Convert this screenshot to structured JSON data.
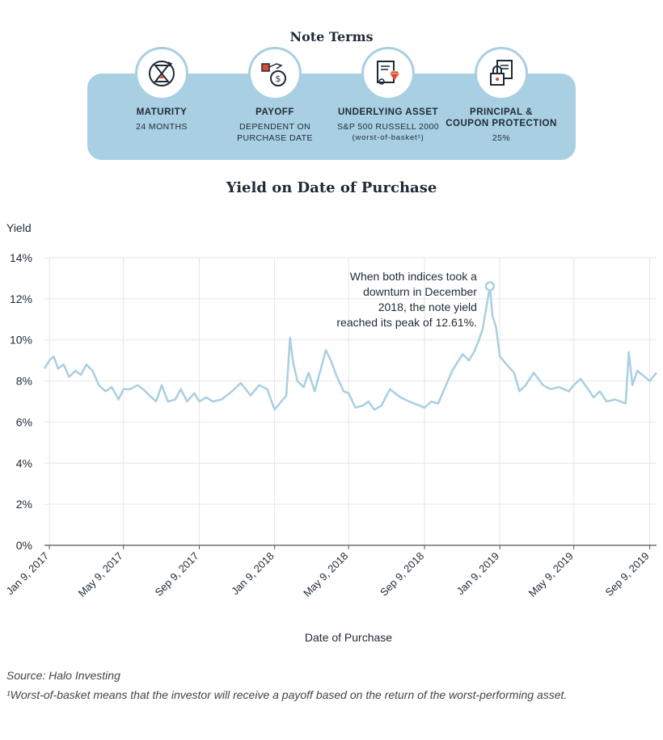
{
  "terms": {
    "title": "Note Terms",
    "items": [
      {
        "label": "MATURITY",
        "value_lines": [
          "24 MONTHS"
        ],
        "icon": "hourglass-icon"
      },
      {
        "label": "PAYOFF",
        "value_lines": [
          "DEPENDENT ON",
          "PURCHASE DATE"
        ],
        "icon": "money-bag-icon"
      },
      {
        "label": "UNDERLYING ASSET",
        "value_lines": [
          "S&P 500 RUSSELL 2000"
        ],
        "note": "(worst-of-basket¹)",
        "icon": "certificate-diamond-icon"
      },
      {
        "label_lines": [
          "PRINCIPAL &",
          "COUPON PROTECTION"
        ],
        "value_lines": [
          "25%"
        ],
        "icon": "document-lock-icon"
      }
    ]
  },
  "colors": {
    "band": "#a9cfe2",
    "line": "#a9cfe2",
    "grid": "#e6e6e6",
    "axis": "#555555",
    "text": "#1e2a36"
  },
  "chart_data": {
    "type": "line",
    "title": "Yield on Date of Purchase",
    "ylabel": "Yield",
    "xlabel": "Date of Purchase",
    "ylim": [
      0,
      14
    ],
    "yticks": [
      0,
      2,
      4,
      6,
      8,
      10,
      12,
      14
    ],
    "ytick_labels": [
      "0%",
      "2%",
      "4%",
      "6%",
      "8%",
      "10%",
      "12%",
      "14%"
    ],
    "xlim": [
      "2017-01-01",
      "2019-09-20"
    ],
    "xticks": [
      "2017-01-09",
      "2017-05-09",
      "2017-09-09",
      "2018-01-09",
      "2018-05-09",
      "2018-09-09",
      "2019-01-09",
      "2019-05-09",
      "2019-09-09"
    ],
    "xtick_labels": [
      "Jan 9, 2017",
      "May 9, 2017",
      "Sep 9, 2017",
      "Jan 9, 2018",
      "May 9, 2018",
      "Sep 9, 2018",
      "Jan 9, 2019",
      "May 9, 2019",
      "Sep 9, 2019"
    ],
    "grid": true,
    "series": [
      {
        "points": [
          [
            "2017-01-01",
            8.6
          ],
          [
            "2017-01-09",
            9.0
          ],
          [
            "2017-01-16",
            9.2
          ],
          [
            "2017-01-23",
            8.6
          ],
          [
            "2017-02-01",
            8.8
          ],
          [
            "2017-02-10",
            8.2
          ],
          [
            "2017-02-20",
            8.5
          ],
          [
            "2017-03-01",
            8.3
          ],
          [
            "2017-03-10",
            8.8
          ],
          [
            "2017-03-20",
            8.5
          ],
          [
            "2017-03-30",
            7.8
          ],
          [
            "2017-04-10",
            7.5
          ],
          [
            "2017-04-20",
            7.7
          ],
          [
            "2017-05-01",
            7.1
          ],
          [
            "2017-05-09",
            7.6
          ],
          [
            "2017-05-20",
            7.6
          ],
          [
            "2017-06-01",
            7.8
          ],
          [
            "2017-06-10",
            7.6
          ],
          [
            "2017-06-20",
            7.3
          ],
          [
            "2017-07-01",
            7.0
          ],
          [
            "2017-07-10",
            7.8
          ],
          [
            "2017-07-20",
            7.0
          ],
          [
            "2017-08-01",
            7.1
          ],
          [
            "2017-08-10",
            7.6
          ],
          [
            "2017-08-20",
            7.0
          ],
          [
            "2017-09-01",
            7.4
          ],
          [
            "2017-09-09",
            7.0
          ],
          [
            "2017-09-20",
            7.2
          ],
          [
            "2017-10-01",
            7.0
          ],
          [
            "2017-10-15",
            7.1
          ],
          [
            "2017-11-01",
            7.5
          ],
          [
            "2017-11-15",
            7.9
          ],
          [
            "2017-12-01",
            7.3
          ],
          [
            "2017-12-15",
            7.8
          ],
          [
            "2017-12-28",
            7.6
          ],
          [
            "2018-01-09",
            6.6
          ],
          [
            "2018-01-20",
            7.0
          ],
          [
            "2018-01-28",
            7.3
          ],
          [
            "2018-02-03",
            10.1
          ],
          [
            "2018-02-08",
            8.9
          ],
          [
            "2018-02-15",
            8.0
          ],
          [
            "2018-02-25",
            7.7
          ],
          [
            "2018-03-05",
            8.4
          ],
          [
            "2018-03-15",
            7.5
          ],
          [
            "2018-03-25",
            8.6
          ],
          [
            "2018-04-02",
            9.5
          ],
          [
            "2018-04-10",
            9.0
          ],
          [
            "2018-04-20",
            8.2
          ],
          [
            "2018-05-01",
            7.5
          ],
          [
            "2018-05-09",
            7.4
          ],
          [
            "2018-05-20",
            6.7
          ],
          [
            "2018-06-01",
            6.8
          ],
          [
            "2018-06-10",
            7.0
          ],
          [
            "2018-06-20",
            6.6
          ],
          [
            "2018-07-01",
            6.8
          ],
          [
            "2018-07-15",
            7.6
          ],
          [
            "2018-08-01",
            7.2
          ],
          [
            "2018-08-15",
            7.0
          ],
          [
            "2018-09-01",
            6.8
          ],
          [
            "2018-09-09",
            6.7
          ],
          [
            "2018-09-20",
            7.0
          ],
          [
            "2018-10-01",
            6.9
          ],
          [
            "2018-10-11",
            7.6
          ],
          [
            "2018-10-24",
            8.5
          ],
          [
            "2018-11-01",
            8.9
          ],
          [
            "2018-11-10",
            9.3
          ],
          [
            "2018-11-20",
            9.0
          ],
          [
            "2018-11-28",
            9.4
          ],
          [
            "2018-12-05",
            9.9
          ],
          [
            "2018-12-12",
            10.5
          ],
          [
            "2018-12-24",
            12.61
          ],
          [
            "2018-12-28",
            11.2
          ],
          [
            "2019-01-03",
            10.6
          ],
          [
            "2019-01-09",
            9.2
          ],
          [
            "2019-01-20",
            8.8
          ],
          [
            "2019-02-01",
            8.4
          ],
          [
            "2019-02-10",
            7.5
          ],
          [
            "2019-02-20",
            7.8
          ],
          [
            "2019-03-05",
            8.4
          ],
          [
            "2019-03-20",
            7.8
          ],
          [
            "2019-04-01",
            7.6
          ],
          [
            "2019-04-15",
            7.7
          ],
          [
            "2019-05-01",
            7.5
          ],
          [
            "2019-05-09",
            7.8
          ],
          [
            "2019-05-20",
            8.1
          ],
          [
            "2019-06-01",
            7.6
          ],
          [
            "2019-06-10",
            7.2
          ],
          [
            "2019-06-20",
            7.5
          ],
          [
            "2019-07-01",
            7.0
          ],
          [
            "2019-07-15",
            7.1
          ],
          [
            "2019-08-01",
            6.9
          ],
          [
            "2019-08-06",
            9.4
          ],
          [
            "2019-08-12",
            7.8
          ],
          [
            "2019-08-20",
            8.5
          ],
          [
            "2019-09-01",
            8.2
          ],
          [
            "2019-09-09",
            8.0
          ],
          [
            "2019-09-20",
            8.4
          ]
        ]
      }
    ],
    "annotation": {
      "x": "2018-12-24",
      "y": 12.61,
      "lines": [
        "When both indices took a",
        "downturn in December",
        "2018, the note yield",
        "reached its peak of 12.61%."
      ]
    }
  },
  "footer": {
    "source": "Source: Halo Investing",
    "footnote": "¹Worst-of-basket means that the investor will receive a payoff based on the return of the worst-performing asset."
  }
}
